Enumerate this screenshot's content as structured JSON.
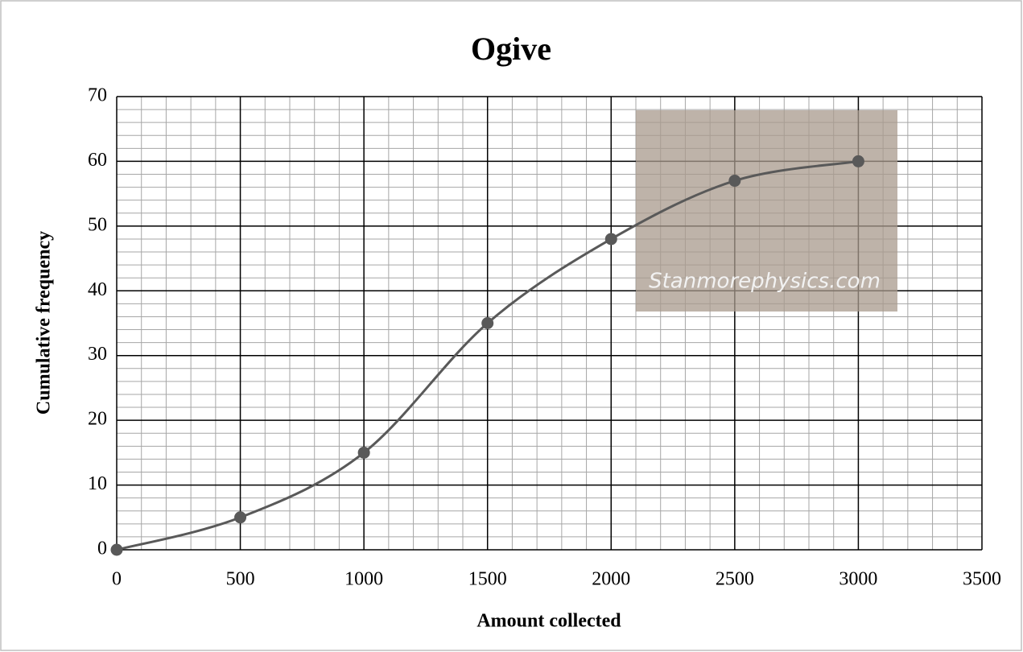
{
  "chart_data": {
    "type": "line",
    "title": "Ogive",
    "x_label": "Amount collected",
    "y_label": "Cumulative frequency",
    "watermark": "Stanmorephysics.com",
    "x": [
      0,
      500,
      1000,
      1500,
      2000,
      2500,
      3000
    ],
    "series": [
      {
        "name": "Cumulative frequency",
        "color": "#595959",
        "values": [
          0,
          5,
          15,
          35,
          48,
          57,
          60
        ]
      }
    ],
    "xlim": [
      0,
      3500
    ],
    "xticks": [
      0,
      500,
      1000,
      1500,
      2000,
      2500,
      3000,
      3500
    ],
    "ylim": [
      0,
      70
    ],
    "yticks": [
      0,
      10,
      20,
      30,
      40,
      50,
      60,
      70
    ],
    "grid": true,
    "smooth": true
  }
}
